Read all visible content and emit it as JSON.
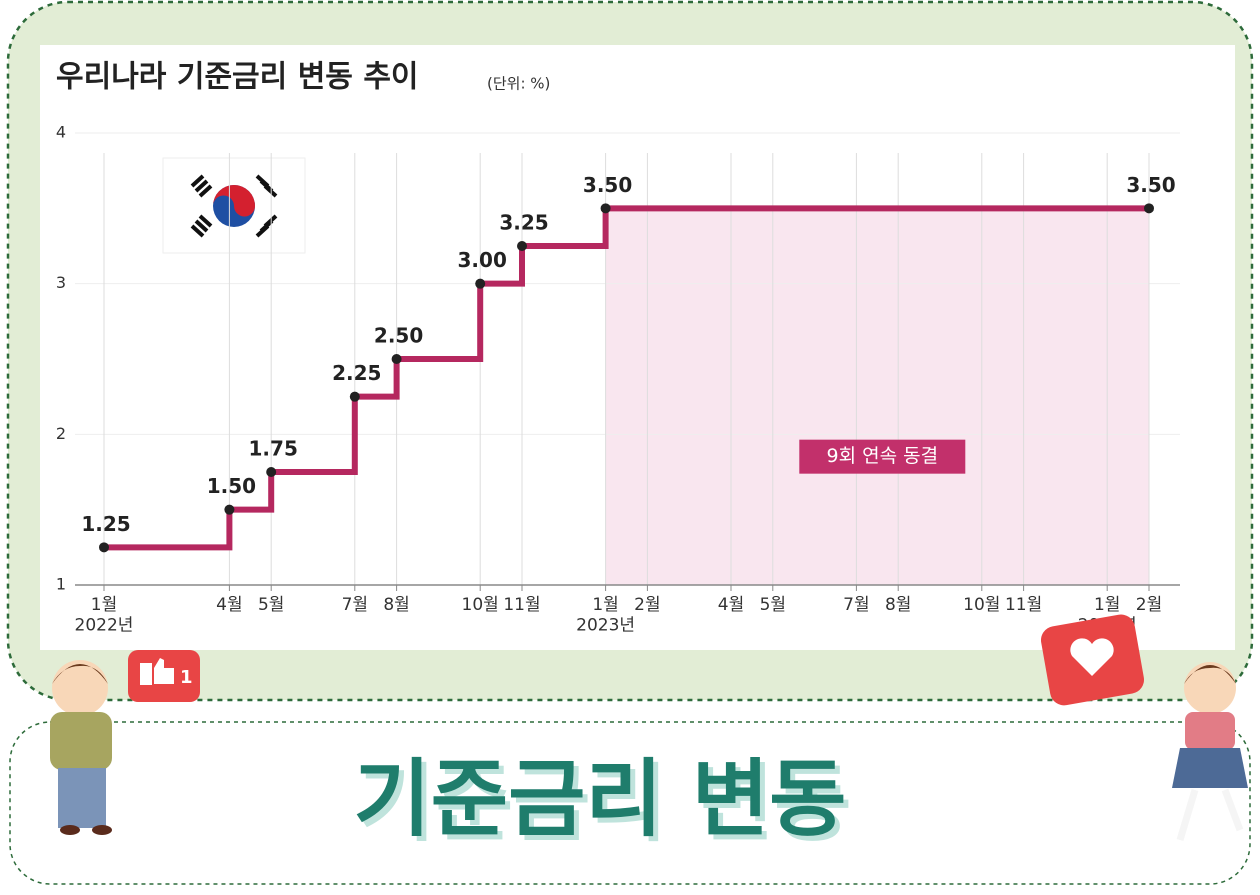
{
  "chart_data": {
    "type": "step",
    "title": "우리나라 기준금리 변동 추이",
    "subtitle": "(단위: %)",
    "categories": [
      "1월\n2022년",
      null,
      null,
      "4월",
      "5월",
      null,
      "7월",
      "8월",
      null,
      "10월",
      "11월",
      null,
      "1월\n2023년",
      "2월",
      null,
      "4월",
      "5월",
      null,
      "7월",
      "8월",
      null,
      "10월",
      "11월",
      null,
      "1월\n2024년",
      "2월"
    ],
    "series": [
      {
        "name": "기준금리",
        "color": "#b5285f",
        "values": [
          1.25,
          1.25,
          1.25,
          1.5,
          1.75,
          1.75,
          2.25,
          2.5,
          2.5,
          3.0,
          3.25,
          3.25,
          3.5,
          3.5,
          3.5,
          3.5,
          3.5,
          3.5,
          3.5,
          3.5,
          3.5,
          3.5,
          3.5,
          3.5,
          3.5,
          3.5
        ],
        "value_labels": [
          "1.25",
          null,
          null,
          "1.50",
          "1.75",
          null,
          "2.25",
          "2.50",
          null,
          "3.00",
          "3.25",
          null,
          "3.50",
          null,
          null,
          null,
          null,
          null,
          null,
          null,
          null,
          null,
          null,
          null,
          null,
          "3.50"
        ]
      }
    ],
    "ylim": [
      1,
      4
    ],
    "yticks": [
      1,
      2,
      3,
      4
    ],
    "grid": true,
    "annotation": "9회 연속 동결",
    "banner": "기준금리 변동",
    "badge": "1"
  }
}
